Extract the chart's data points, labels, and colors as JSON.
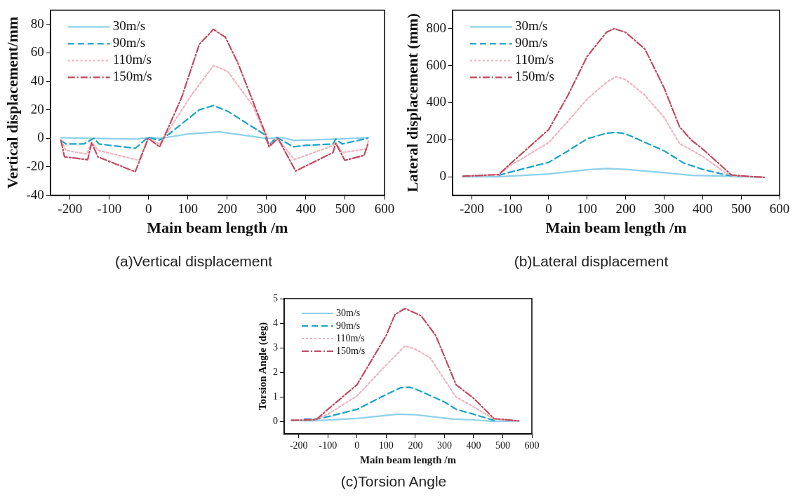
{
  "chart_data": [
    {
      "type": "line",
      "title": "(a)Vertical displacement",
      "xlabel": "Main beam length /m",
      "ylabel": "Vertical displacement/mm",
      "xlim": [
        -250,
        600
      ],
      "xticks": [
        -200,
        -100,
        0,
        100,
        200,
        300,
        400,
        500,
        600
      ],
      "ylim": [
        -40,
        90
      ],
      "yticks": [
        -40,
        -20,
        0,
        20,
        40,
        60,
        80
      ],
      "grid": false,
      "legend": "top left",
      "marker": "none",
      "series": [
        {
          "name": "30m/s",
          "color": "#8fd0e8",
          "line_style": "solid",
          "x": [
            -223,
            -150,
            -30,
            0,
            30,
            100,
            180,
            300,
            340,
            370,
            480,
            560
          ],
          "values": [
            0.5,
            0,
            -0.5,
            0.5,
            0,
            3,
            4.5,
            0,
            0.5,
            -1.5,
            -0.5,
            0.5
          ]
        },
        {
          "name": "90m/s",
          "color": "#1aa3c8",
          "line_style": "dashed",
          "x": [
            -223,
            -210,
            -165,
            -139,
            -126,
            -34,
            -1,
            25,
            38,
            129,
            165,
            201,
            293,
            306,
            325,
            368,
            397,
            469,
            476,
            492,
            557
          ],
          "values": [
            -1.5,
            -4,
            -4,
            0,
            -4,
            -7,
            0.8,
            -1.4,
            0,
            20,
            23,
            19,
            3,
            -5,
            0.8,
            -6,
            -5,
            -4,
            -0.5,
            -4,
            0
          ]
        },
        {
          "name": "110m/s",
          "color": "#f0b4c0",
          "line_style": "dotted",
          "x": [
            -223,
            -210,
            -158,
            -144,
            -128,
            -24,
            -1,
            28,
            38,
            108,
            165,
            201,
            265,
            299,
            306,
            329,
            371,
            469,
            476,
            492,
            554,
            559
          ],
          "values": [
            -1.5,
            -8.5,
            -11,
            -3,
            -8.5,
            -15.5,
            0,
            -4,
            0,
            30,
            51,
            47,
            23,
            0.8,
            -5,
            -0.5,
            -15,
            -5,
            -3,
            -10,
            -7.5,
            -1.5
          ]
        },
        {
          "name": "150m/s",
          "color": "#c24a60",
          "line_style": "dashdot",
          "x": [
            -223,
            -214,
            -155,
            -145,
            -129,
            -34,
            -1,
            28,
            38,
            84,
            129,
            165,
            195,
            227,
            299,
            306,
            329,
            374,
            469,
            476,
            499,
            548,
            559
          ],
          "values": [
            -1.5,
            -13,
            -15,
            -3,
            -13,
            -23.5,
            0,
            -6,
            0,
            28.7,
            66,
            76.5,
            71,
            53,
            2,
            -6,
            0,
            -23,
            -10,
            -3.5,
            -15.5,
            -12,
            -3
          ]
        }
      ]
    },
    {
      "type": "line",
      "title": "(b)Lateral displacement",
      "xlabel": "Main beam length /m",
      "ylabel": "Lateral displacement (mm)",
      "xlim": [
        -250,
        600
      ],
      "xticks": [
        -200,
        -100,
        0,
        100,
        200,
        300,
        400,
        500,
        600
      ],
      "ylim": [
        -100,
        900
      ],
      "yticks": [
        0,
        200,
        400,
        600,
        800
      ],
      "grid": false,
      "legend": "top left",
      "marker": "none",
      "series": [
        {
          "name": "30m/s",
          "color": "#8fd0e8",
          "line_style": "solid",
          "x": [
            -223,
            -130,
            0,
            100,
            150,
            200,
            300,
            370,
            480,
            560
          ],
          "values": [
            0,
            0,
            15,
            38,
            45,
            40,
            22,
            8,
            2,
            -3
          ]
        },
        {
          "name": "90m/s",
          "color": "#1aa3c8",
          "line_style": "dashed",
          "x": [
            -130,
            -100,
            0,
            50,
            100,
            150,
            175,
            200,
            300,
            350,
            400,
            460,
            500
          ],
          "values": [
            8,
            25,
            78,
            140,
            205,
            235,
            240,
            232,
            140,
            75,
            40,
            10,
            0
          ]
        },
        {
          "name": "110m/s",
          "color": "#f0b4c0",
          "line_style": "dotted",
          "x": [
            -223,
            -130,
            -100,
            0,
            50,
            100,
            150,
            175,
            200,
            250,
            300,
            340,
            400,
            460,
            480,
            560
          ],
          "values": [
            3,
            10,
            60,
            185,
            300,
            420,
            510,
            540,
            525,
            440,
            320,
            180,
            110,
            20,
            5,
            -3
          ]
        },
        {
          "name": "150m/s",
          "color": "#c24a60",
          "line_style": "dashdot",
          "x": [
            -223,
            -130,
            -100,
            0,
            50,
            100,
            150,
            170,
            200,
            250,
            300,
            340,
            370,
            400,
            475,
            500,
            560
          ],
          "values": [
            3,
            12,
            70,
            255,
            440,
            650,
            780,
            800,
            780,
            690,
            480,
            270,
            200,
            150,
            10,
            5,
            -3
          ]
        }
      ]
    },
    {
      "type": "line",
      "title": "(c)Torsion Angle",
      "xlabel": "Main beam length /m",
      "ylabel": "Torsion Angle (deg)",
      "xlim": [
        -250,
        600
      ],
      "xticks": [
        -200,
        -100,
        0,
        100,
        200,
        300,
        400,
        500,
        600
      ],
      "ylim": [
        -0.5,
        5
      ],
      "yticks": [
        0,
        1,
        2,
        3,
        4,
        5
      ],
      "grid": false,
      "legend": "top left",
      "marker": "none",
      "series": [
        {
          "name": "30m/s",
          "color": "#8fd0e8",
          "line_style": "solid",
          "x": [
            -225,
            -150,
            0,
            100,
            140,
            200,
            330,
            400,
            470,
            555
          ],
          "values": [
            0.05,
            0.03,
            0.13,
            0.25,
            0.3,
            0.28,
            0.1,
            0.07,
            0.01,
            0.02
          ]
        },
        {
          "name": "90m/s",
          "color": "#1aa3c8",
          "line_style": "dashed",
          "x": [
            -180,
            -140,
            -100,
            0,
            100,
            150,
            180,
            200,
            300,
            340,
            400,
            470
          ],
          "values": [
            0.1,
            0.1,
            0.2,
            0.5,
            1.1,
            1.38,
            1.4,
            1.33,
            0.8,
            0.5,
            0.3,
            0.05
          ]
        },
        {
          "name": "110m/s",
          "color": "#f0b4c0",
          "line_style": "dotted",
          "x": [
            -225,
            -140,
            -100,
            0,
            100,
            165,
            200,
            250,
            340,
            400,
            470,
            555
          ],
          "values": [
            0.05,
            0.08,
            0.3,
            1.05,
            2.3,
            3.08,
            2.95,
            2.6,
            1.0,
            0.6,
            0.1,
            0.03
          ]
        },
        {
          "name": "150m/s",
          "color": "#c24a60",
          "line_style": "dashdot",
          "x": [
            -225,
            -140,
            -100,
            0,
            100,
            130,
            165,
            220,
            270,
            340,
            400,
            470,
            555
          ],
          "values": [
            0.05,
            0.08,
            0.5,
            1.5,
            3.5,
            4.35,
            4.6,
            4.3,
            3.5,
            1.5,
            0.95,
            0.12,
            0.03
          ]
        }
      ]
    }
  ]
}
